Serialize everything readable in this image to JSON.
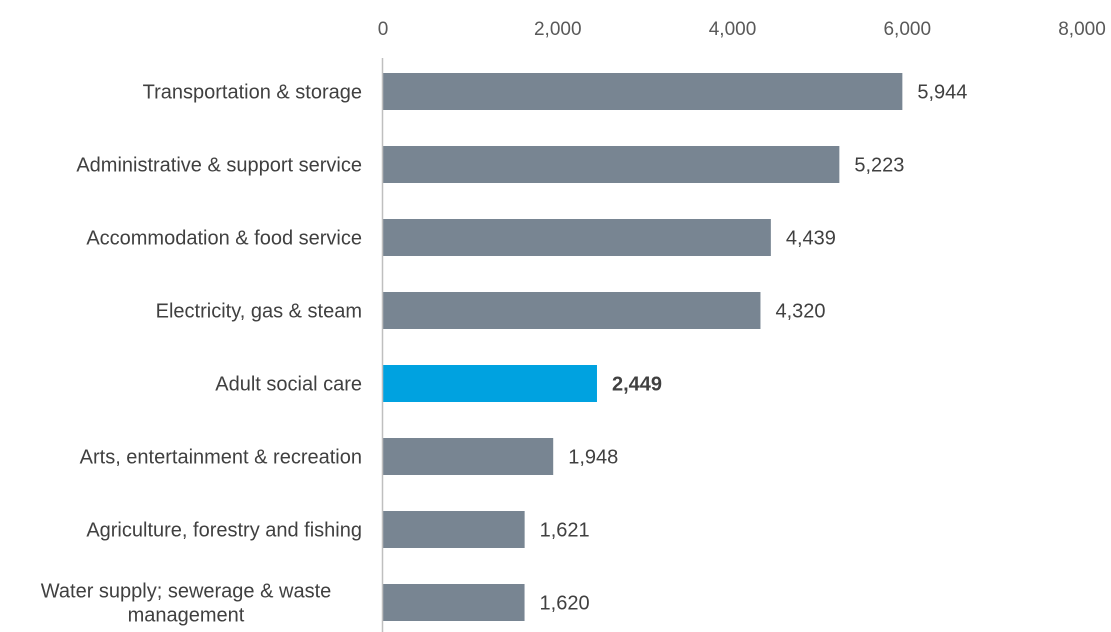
{
  "chart_data": {
    "type": "bar",
    "orientation": "horizontal",
    "categories": [
      "Transportation & storage",
      "Administrative & support service",
      "Accommodation & food service",
      "Electricity, gas & steam",
      "Adult social care",
      "Arts, entertainment & recreation",
      "Agriculture, forestry and fishing",
      "Water supply; sewerage & waste management"
    ],
    "values": [
      5944,
      5223,
      4439,
      4320,
      2449,
      1948,
      1621,
      1620
    ],
    "value_labels": [
      "5,944",
      "5,223",
      "4,439",
      "4,320",
      "2,449",
      "1,948",
      "1,621",
      "1,620"
    ],
    "highlight_index": 4,
    "xlim": [
      0,
      8000
    ],
    "xticks": [
      0,
      2000,
      4000,
      6000,
      8000
    ],
    "xtick_labels": [
      "0",
      "2,000",
      "4,000",
      "6,000",
      "8,000"
    ],
    "x_axis_position": "top",
    "grid": false,
    "legend": "none",
    "title": "",
    "xlabel": "",
    "ylabel": "",
    "colors": {
      "bar": "#788592",
      "highlight": "#00a2e0",
      "axis": "#bfbfbf"
    }
  }
}
